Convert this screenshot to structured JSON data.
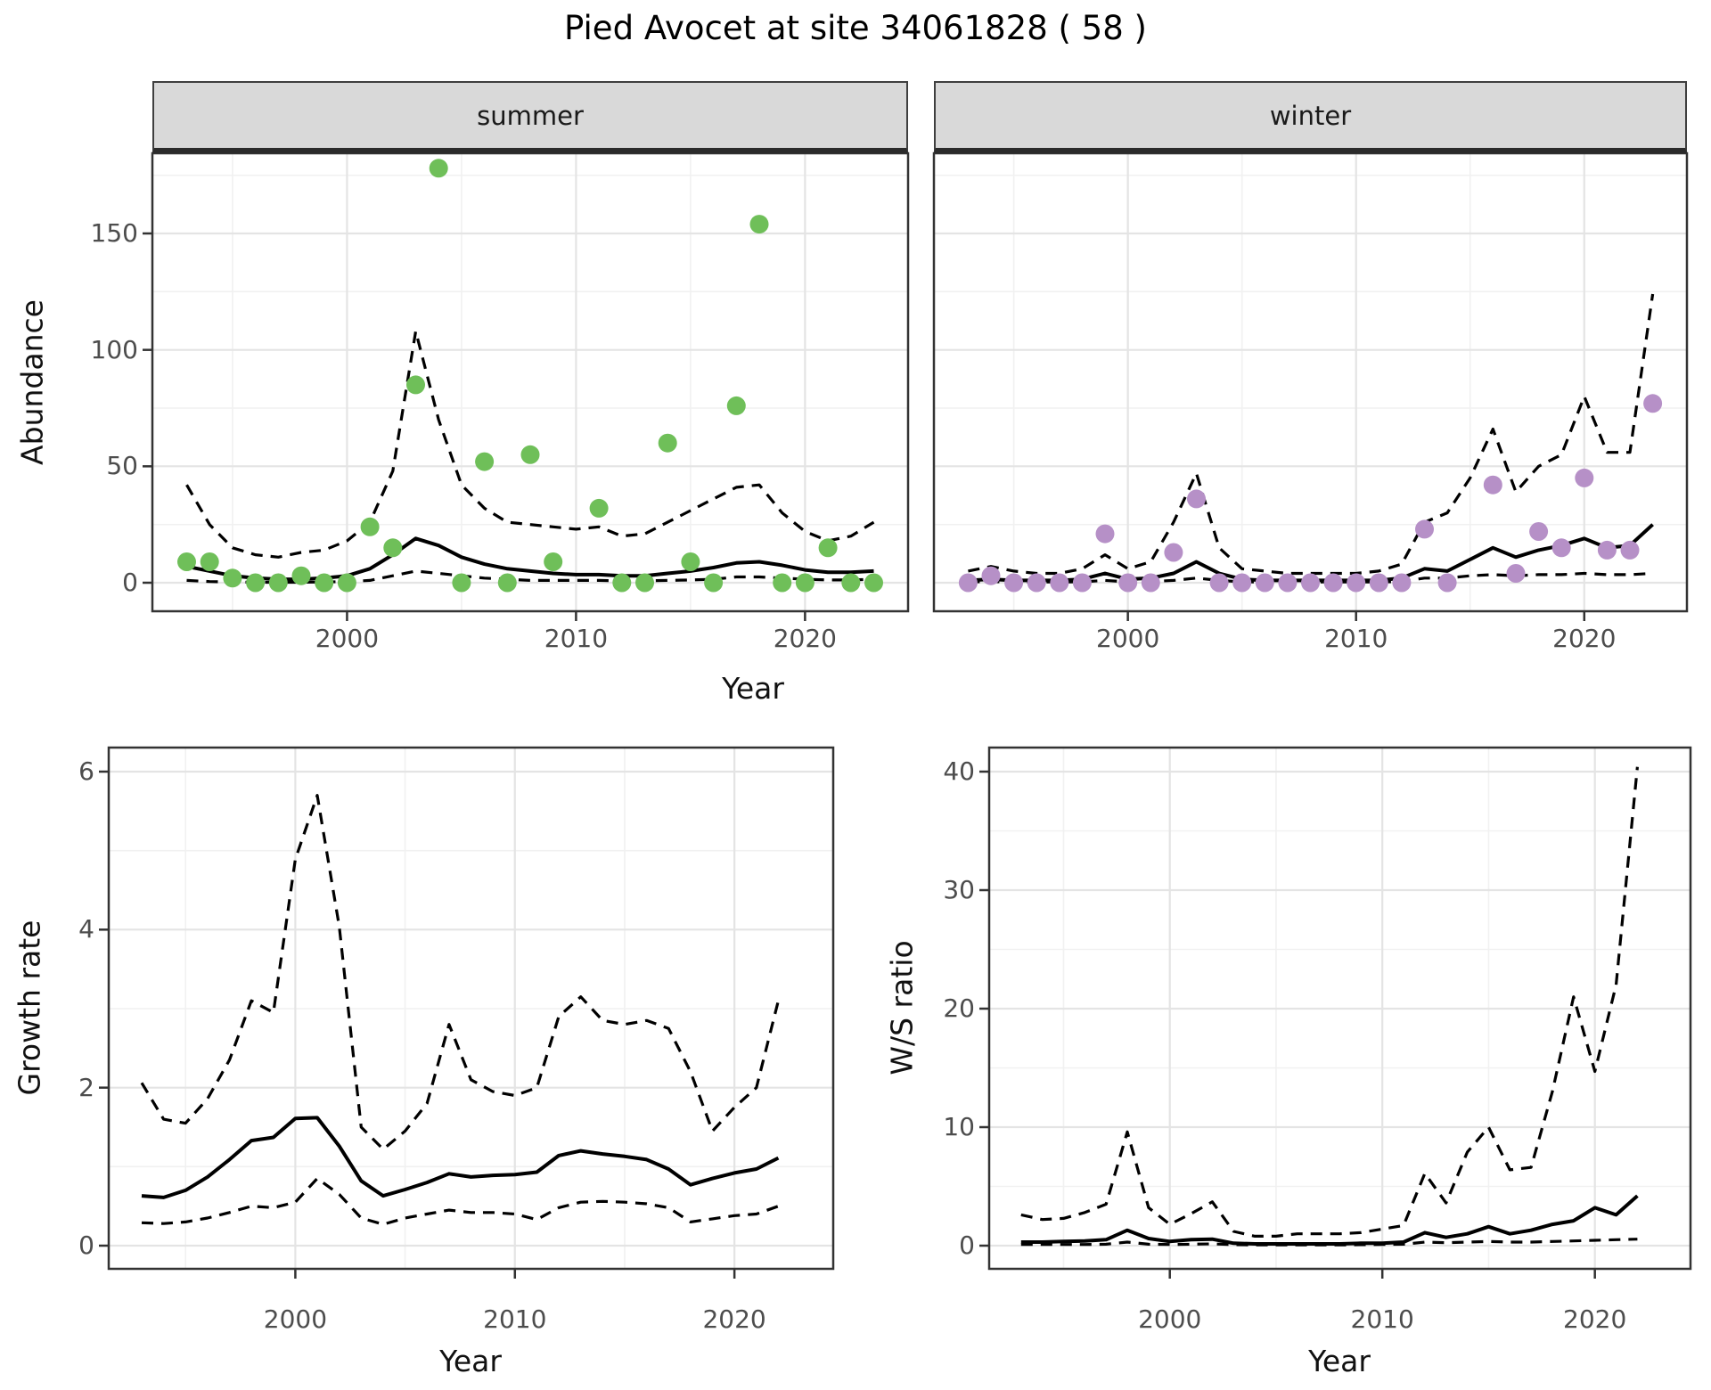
{
  "title": "Pied Avocet at site 34061828 ( 58 )",
  "colors": {
    "summer_dot": "#6FBF59",
    "winter_dot": "#B690C7",
    "line": "#000000",
    "strip_bg": "#D9D9D9",
    "panel_border": "#333333",
    "grid_major": "#E4E4E4",
    "grid_minor": "#F1F1F1",
    "tick_text": "#4D4D4D",
    "tick_mark": "#333333"
  },
  "chart_data": [
    {
      "type": "scatter",
      "title": "Abundance observations with model fit and 95% CI, faceted by season",
      "xlabel": "Year",
      "ylabel": "Abundance",
      "x_ticks": [
        2000,
        2010,
        2020
      ],
      "y_ticks": [
        0,
        50,
        100,
        150
      ],
      "xlim": [
        1991.5,
        2024.5
      ],
      "ylim": [
        -9,
        184
      ],
      "grid": true,
      "legend_position": "none",
      "facets": [
        {
          "name": "summer",
          "dot_color": "#6FBF59",
          "obs_years": [
            1993,
            1994,
            1995,
            1996,
            1997,
            1998,
            1999,
            2000,
            2001,
            2002,
            2003,
            2004,
            2005,
            2006,
            2007,
            2008,
            2009,
            2011,
            2012,
            2013,
            2014,
            2015,
            2016,
            2017,
            2018,
            2019,
            2020,
            2021,
            2022,
            2023
          ],
          "obs_values": [
            9,
            9,
            2,
            0,
            0,
            3,
            0,
            0,
            24,
            15,
            85,
            178,
            0,
            52,
            0,
            55,
            9,
            32,
            0,
            0,
            60,
            9,
            0,
            76,
            154,
            0,
            0,
            15,
            0,
            0
          ],
          "fit_years": [
            1993,
            1994,
            1995,
            1996,
            1997,
            1998,
            1999,
            2000,
            2001,
            2002,
            2003,
            2004,
            2005,
            2006,
            2007,
            2008,
            2009,
            2010,
            2011,
            2012,
            2013,
            2014,
            2015,
            2016,
            2017,
            2018,
            2019,
            2020,
            2021,
            2022,
            2023
          ],
          "fit_median": [
            7,
            5,
            3,
            2,
            1.5,
            1.5,
            2,
            3,
            6,
            12,
            19,
            16,
            11,
            8,
            6,
            5,
            4,
            3.5,
            3.5,
            3,
            3,
            4,
            5,
            6.5,
            8.5,
            9,
            7.5,
            5.5,
            4.5,
            4.5,
            5
          ],
          "ci_upper": [
            42,
            25,
            15,
            12,
            11,
            13,
            14,
            18,
            26,
            48,
            108,
            70,
            42,
            32,
            26,
            25,
            24,
            23,
            24,
            20,
            21,
            26,
            31,
            36,
            41,
            42,
            30,
            22,
            18,
            20,
            26
          ],
          "ci_lower": [
            1,
            0.5,
            0.3,
            0.2,
            0.2,
            0.2,
            0.3,
            0.5,
            1,
            3,
            5,
            4,
            3,
            2,
            1.5,
            1,
            1,
            1,
            1,
            0.8,
            0.8,
            1,
            1.2,
            1.5,
            2.5,
            2.5,
            2,
            1.5,
            1.2,
            1.2,
            1.5
          ]
        },
        {
          "name": "winter",
          "dot_color": "#B690C7",
          "obs_years": [
            1993,
            1994,
            1995,
            1996,
            1997,
            1998,
            1999,
            2000,
            2001,
            2002,
            2003,
            2004,
            2005,
            2006,
            2007,
            2008,
            2009,
            2010,
            2011,
            2012,
            2013,
            2014,
            2016,
            2017,
            2018,
            2019,
            2020,
            2021,
            2022,
            2023
          ],
          "obs_values": [
            0,
            3,
            0,
            0,
            0,
            0,
            21,
            0,
            0,
            13,
            36,
            0,
            0,
            0,
            0,
            0,
            0,
            0,
            0,
            0,
            23,
            0,
            42,
            4,
            22,
            15,
            45,
            14,
            14,
            77
          ],
          "fit_years": [
            1993,
            1994,
            1995,
            1996,
            1997,
            1998,
            1999,
            2000,
            2001,
            2002,
            2003,
            2004,
            2005,
            2006,
            2007,
            2008,
            2009,
            2010,
            2011,
            2012,
            2013,
            2014,
            2015,
            2016,
            2017,
            2018,
            2019,
            2020,
            2021,
            2022,
            2023
          ],
          "fit_median": [
            1,
            1.5,
            1,
            1,
            1,
            1.5,
            4,
            1.5,
            2,
            4,
            9,
            4,
            1.5,
            1,
            1,
            1,
            1,
            1,
            1,
            2,
            6,
            5,
            10,
            15,
            11,
            14,
            16,
            19,
            15,
            16,
            25
          ],
          "ci_upper": [
            5,
            7,
            5,
            4,
            4,
            6,
            12,
            6,
            9,
            26,
            47,
            15,
            6,
            5,
            4,
            4,
            4,
            4,
            5,
            8,
            26,
            30,
            45,
            66,
            39,
            50,
            55,
            80,
            56,
            56,
            124
          ],
          "ci_lower": [
            0.3,
            0.5,
            0.3,
            0.3,
            0.3,
            0.4,
            1,
            0.4,
            0.5,
            1,
            2,
            1,
            0.4,
            0.3,
            0.3,
            0.3,
            0.3,
            0.3,
            0.3,
            0.5,
            2,
            2,
            3,
            3.5,
            3,
            3.5,
            3.5,
            4,
            3.5,
            3.5,
            4
          ]
        }
      ]
    },
    {
      "type": "line",
      "title": "Growth rate with 95% CI",
      "xlabel": "Year",
      "ylabel": "Growth rate",
      "x_ticks": [
        2000,
        2010,
        2020
      ],
      "y_ticks": [
        0,
        2,
        4,
        6
      ],
      "xlim": [
        1991.5,
        2024.5
      ],
      "ylim": [
        -0.15,
        6.3
      ],
      "grid": true,
      "years": [
        1993,
        1994,
        1995,
        1996,
        1997,
        1998,
        1999,
        2000,
        2001,
        2002,
        2003,
        2004,
        2005,
        2006,
        2007,
        2008,
        2009,
        2010,
        2011,
        2012,
        2013,
        2014,
        2015,
        2016,
        2017,
        2018,
        2019,
        2020,
        2021,
        2022
      ],
      "median": [
        0.63,
        0.61,
        0.7,
        0.87,
        1.09,
        1.33,
        1.37,
        1.61,
        1.62,
        1.26,
        0.82,
        0.63,
        0.71,
        0.8,
        0.91,
        0.87,
        0.89,
        0.9,
        0.93,
        1.14,
        1.2,
        1.16,
        1.13,
        1.09,
        0.97,
        0.77,
        0.85,
        0.92,
        0.97,
        1.11
      ],
      "ci_upper": [
        2.06,
        1.6,
        1.55,
        1.86,
        2.35,
        3.1,
        2.95,
        4.89,
        5.7,
        4.04,
        1.5,
        1.22,
        1.45,
        1.8,
        2.8,
        2.1,
        1.95,
        1.9,
        2.0,
        2.9,
        3.15,
        2.85,
        2.8,
        2.85,
        2.75,
        2.2,
        1.45,
        1.75,
        2.0,
        3.1
      ],
      "ci_lower": [
        0.29,
        0.28,
        0.3,
        0.35,
        0.42,
        0.5,
        0.48,
        0.55,
        0.85,
        0.65,
        0.35,
        0.27,
        0.35,
        0.4,
        0.45,
        0.42,
        0.42,
        0.4,
        0.33,
        0.48,
        0.55,
        0.56,
        0.55,
        0.53,
        0.48,
        0.3,
        0.34,
        0.38,
        0.4,
        0.5
      ]
    },
    {
      "type": "line",
      "title": "Winter/Summer ratio with 95% CI",
      "xlabel": "Year",
      "ylabel": "W/S ratio",
      "x_ticks": [
        2000,
        2010,
        2020
      ],
      "y_ticks": [
        0,
        10,
        20,
        30,
        40
      ],
      "xlim": [
        1991.5,
        2024.5
      ],
      "ylim": [
        -2,
        42
      ],
      "grid": true,
      "years": [
        1993,
        1994,
        1995,
        1996,
        1997,
        1998,
        1999,
        2000,
        2001,
        2002,
        2003,
        2004,
        2005,
        2006,
        2007,
        2008,
        2009,
        2010,
        2011,
        2012,
        2013,
        2014,
        2015,
        2016,
        2017,
        2018,
        2019,
        2020,
        2021,
        2022
      ],
      "median": [
        0.3,
        0.3,
        0.35,
        0.4,
        0.5,
        1.3,
        0.6,
        0.35,
        0.5,
        0.55,
        0.2,
        0.15,
        0.15,
        0.15,
        0.15,
        0.15,
        0.2,
        0.2,
        0.3,
        1.1,
        0.7,
        1.0,
        1.6,
        1.0,
        1.3,
        1.8,
        2.1,
        3.2,
        2.6,
        4.2
      ],
      "ci_upper": [
        2.6,
        2.2,
        2.3,
        2.8,
        3.5,
        9.6,
        3.2,
        1.8,
        2.7,
        3.7,
        1.2,
        0.8,
        0.8,
        1.0,
        1.0,
        1.0,
        1.1,
        1.4,
        1.7,
        6.1,
        3.6,
        7.9,
        10.0,
        6.4,
        6.6,
        13.0,
        21.0,
        14.7,
        22.0,
        40.4
      ],
      "ci_lower": [
        0.1,
        0.1,
        0.1,
        0.1,
        0.12,
        0.3,
        0.12,
        0.1,
        0.12,
        0.15,
        0.08,
        0.06,
        0.06,
        0.06,
        0.06,
        0.06,
        0.08,
        0.1,
        0.12,
        0.3,
        0.25,
        0.3,
        0.35,
        0.3,
        0.3,
        0.35,
        0.4,
        0.45,
        0.5,
        0.55
      ]
    }
  ]
}
